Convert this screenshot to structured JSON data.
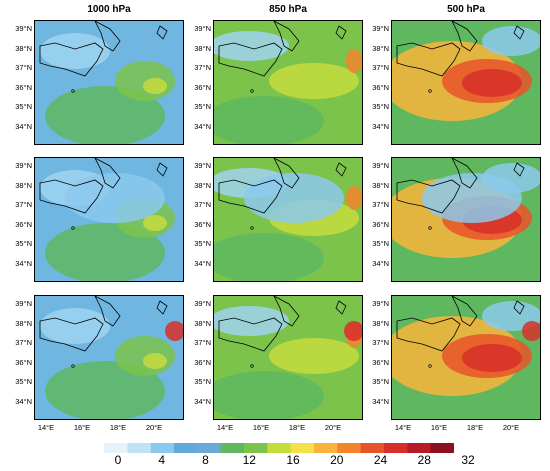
{
  "columns": [
    "1000 hPa",
    "850 hPa",
    "500 hPa"
  ],
  "lat_ticks": [
    "39°N",
    "38°N",
    "37°N",
    "36°N",
    "35°N",
    "34°N"
  ],
  "lon_ticks": [
    "14°E",
    "16°E",
    "18°E",
    "20°E"
  ],
  "colorbar": {
    "labels": [
      "0",
      "4",
      "8",
      "12",
      "16",
      "20",
      "24",
      "28",
      "32"
    ],
    "colors": [
      "#e6f3fb",
      "#bfe2f4",
      "#8cc9ec",
      "#5fa9dc",
      "#6aaad4",
      "#5fb860",
      "#7cc34c",
      "#c6dc3d",
      "#f6e04a",
      "#f9b43b",
      "#f4842c",
      "#e8542a",
      "#d6302a",
      "#b41d26",
      "#8c1020"
    ]
  },
  "panels": [
    {
      "row": 0,
      "col": 0,
      "name": "1000-hPa-row1"
    },
    {
      "row": 0,
      "col": 1,
      "name": "850-hPa-row1"
    },
    {
      "row": 0,
      "col": 2,
      "name": "500-hPa-row1"
    },
    {
      "row": 1,
      "col": 0,
      "name": "1000-hPa-row2"
    },
    {
      "row": 1,
      "col": 1,
      "name": "850-hPa-row2"
    },
    {
      "row": 1,
      "col": 2,
      "name": "500-hPa-row2"
    },
    {
      "row": 2,
      "col": 0,
      "name": "1000-hPa-row3"
    },
    {
      "row": 2,
      "col": 1,
      "name": "850-hPa-row3"
    },
    {
      "row": 2,
      "col": 2,
      "name": "500-hPa-row3"
    }
  ]
}
